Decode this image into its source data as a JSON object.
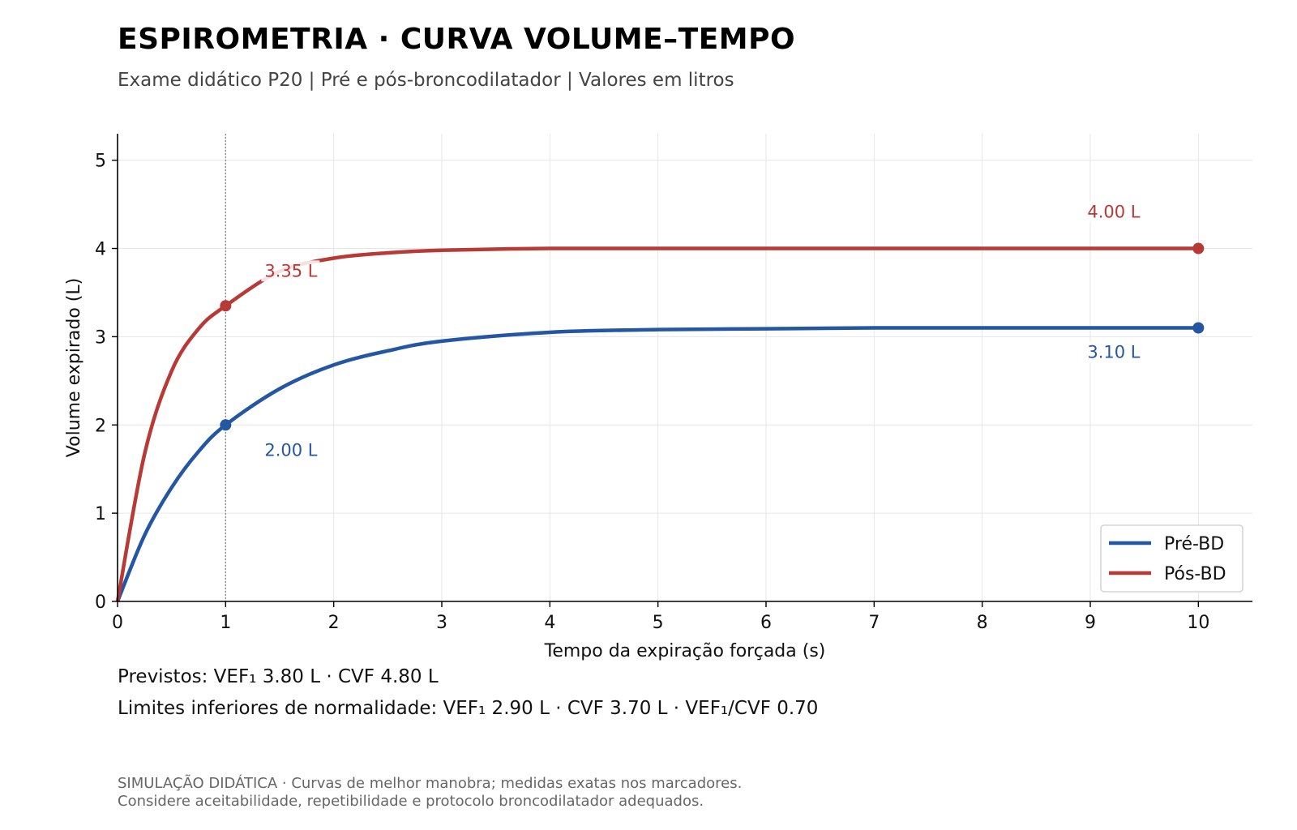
{
  "header": {
    "title": "ESPIROMETRIA · CURVA VOLUME–TEMPO",
    "subtitle": "Exame didático P20  |  Pré e pós-broncodilatador  |  Valores em litros"
  },
  "info": {
    "line1": "Previstos: VEF₁ 3.80 L  ·  CVF 4.80 L",
    "line2": "Limites inferiores de normalidade: VEF₁ 2.90 L  ·  CVF 3.70 L  ·  VEF₁/CVF 0.70"
  },
  "footer": {
    "line1": "SIMULAÇÃO DIDÁTICA · Curvas de melhor manobra; medidas exatas nos marcadores.",
    "line2": "Considere aceitabilidade, repetibilidade e protocolo broncodilatador adequados."
  },
  "chart_data": {
    "type": "line",
    "xlabel": "Tempo da expiração forçada (s)",
    "ylabel": "Volume expirado (L)",
    "xlim": [
      0,
      10.5
    ],
    "ylim": [
      0,
      5.3
    ],
    "xticks": [
      0,
      1,
      2,
      3,
      4,
      5,
      6,
      7,
      8,
      9,
      10
    ],
    "yticks": [
      0,
      1,
      2,
      3,
      4,
      5
    ],
    "grid": true,
    "legend_position": "lower-right",
    "reference_line": {
      "x": 1,
      "style": "dotted",
      "color": "#888888"
    },
    "x": [
      0,
      0.25,
      0.5,
      0.75,
      1,
      1.5,
      2,
      2.5,
      3,
      4,
      5,
      6,
      7,
      8,
      9,
      10
    ],
    "series": [
      {
        "name": "Pré-BD",
        "color": "#2456a4",
        "values": [
          0,
          0.75,
          1.29,
          1.7,
          2.0,
          2.41,
          2.68,
          2.84,
          2.95,
          3.05,
          3.08,
          3.09,
          3.1,
          3.1,
          3.1,
          3.1
        ],
        "markers": [
          {
            "x": 1,
            "y": 2.0,
            "label": "2.00 L"
          },
          {
            "x": 10,
            "y": 3.1,
            "label": "3.10 L"
          }
        ]
      },
      {
        "name": "Pós-BD",
        "color": "#b83a36",
        "values": [
          0,
          1.67,
          2.61,
          3.09,
          3.35,
          3.74,
          3.89,
          3.95,
          3.98,
          4.0,
          4.0,
          4.0,
          4.0,
          4.0,
          4.0,
          4.0
        ],
        "markers": [
          {
            "x": 1,
            "y": 3.35,
            "label": "3.35 L"
          },
          {
            "x": 10,
            "y": 4.0,
            "label": "4.00 L"
          }
        ]
      }
    ]
  }
}
